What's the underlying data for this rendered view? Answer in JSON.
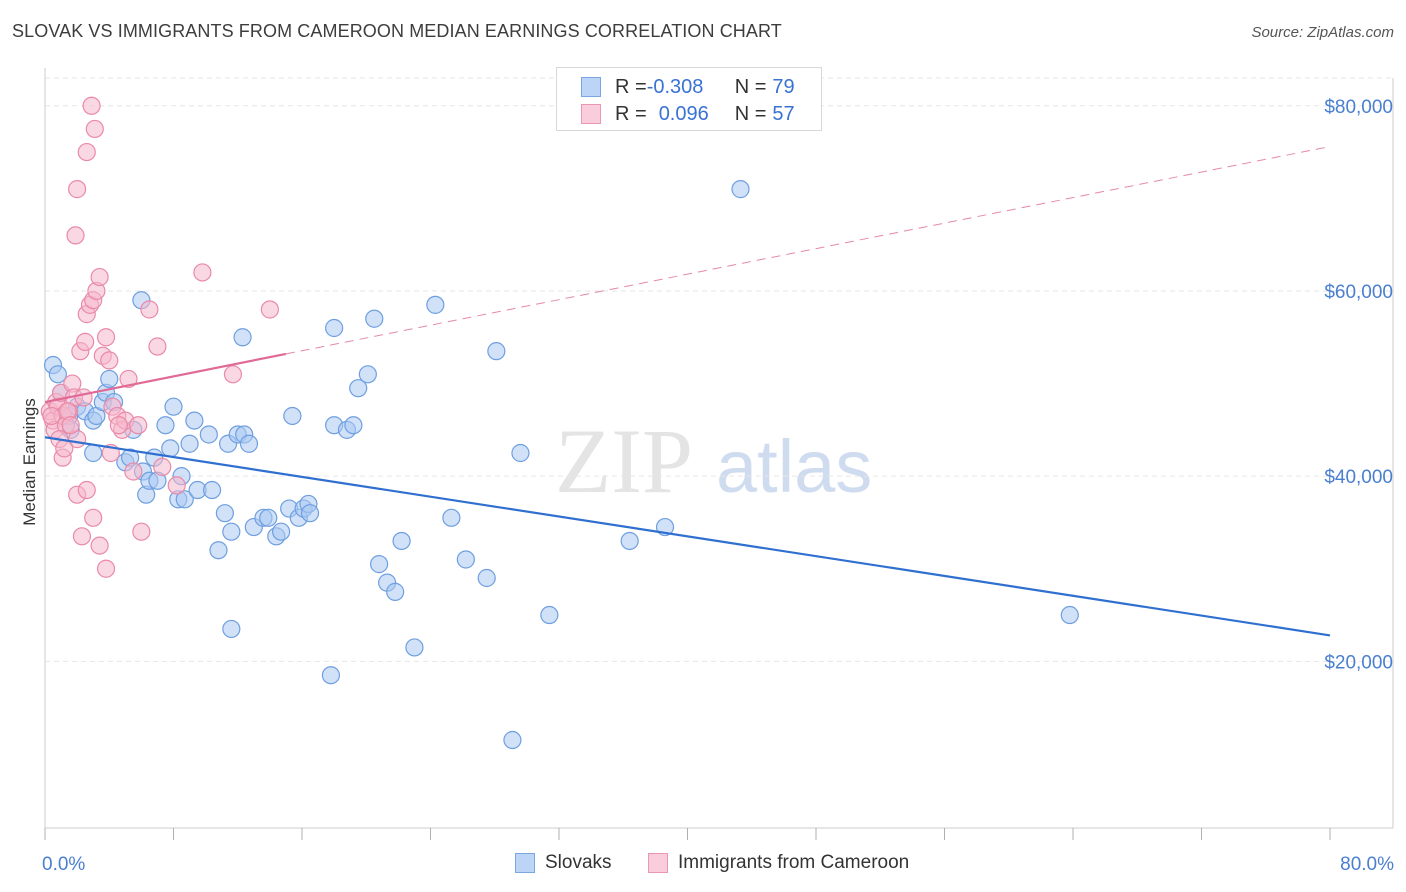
{
  "title": "SLOVAK VS IMMIGRANTS FROM CAMEROON MEDIAN EARNINGS CORRELATION CHART",
  "source": "Source: ZipAtlas.com",
  "watermark": {
    "zip": "ZIP",
    "atlas": "atlas"
  },
  "colors": {
    "blue_fill": "#a9c8f2",
    "blue_stroke": "#6f9fe0",
    "blue_line": "#2f6fd0",
    "pink_fill": "#f6b8cc",
    "pink_stroke": "#e98aa9",
    "pink_line": "#e06a95",
    "grid": "#e6e6e6",
    "tick_text": "#4a7fd0"
  },
  "legend": {
    "rows": [
      {
        "r_label": "R = ",
        "r_value": "-0.308",
        "n_label": "N = ",
        "n_value": "79"
      },
      {
        "r_label": "R = ",
        "r_value": "0.096",
        "n_label": "N = ",
        "n_value": "57"
      }
    ]
  },
  "chart_data": {
    "type": "scatter",
    "title": "SLOVAK VS IMMIGRANTS FROM CAMEROON MEDIAN EARNINGS CORRELATION CHART",
    "xlabel": "",
    "ylabel": "Median Earnings",
    "xlim": [
      0,
      80
    ],
    "ylim": [
      2000,
      83000
    ],
    "x_tick_labels": [
      "0.0%",
      "80.0%"
    ],
    "y_ticks": [
      20000,
      40000,
      60000,
      80000
    ],
    "y_tick_labels": [
      "$20,000",
      "$40,000",
      "$60,000",
      "$80,000"
    ],
    "grid": true,
    "legend_position": "top-center",
    "series": [
      {
        "name": "Slovaks",
        "color": "#a9c8f2",
        "points": [
          [
            0.5,
            52000
          ],
          [
            0.8,
            51000
          ],
          [
            1.5,
            46500
          ],
          [
            1.6,
            45000
          ],
          [
            2.0,
            47500
          ],
          [
            2.5,
            47000
          ],
          [
            3.0,
            46000
          ],
          [
            3.2,
            46500
          ],
          [
            3.6,
            48000
          ],
          [
            3.8,
            49000
          ],
          [
            4.0,
            50500
          ],
          [
            4.3,
            48000
          ],
          [
            3.0,
            42500
          ],
          [
            5.0,
            41500
          ],
          [
            5.3,
            42000
          ],
          [
            5.5,
            45000
          ],
          [
            6.1,
            40500
          ],
          [
            6.3,
            38000
          ],
          [
            6.5,
            39500
          ],
          [
            6.8,
            42000
          ],
          [
            7.0,
            39500
          ],
          [
            7.5,
            45500
          ],
          [
            7.8,
            43000
          ],
          [
            8.0,
            47500
          ],
          [
            8.3,
            37500
          ],
          [
            8.5,
            40000
          ],
          [
            8.7,
            37500
          ],
          [
            9.0,
            43500
          ],
          [
            9.3,
            46000
          ],
          [
            9.5,
            38500
          ],
          [
            10.2,
            44500
          ],
          [
            10.4,
            38500
          ],
          [
            10.8,
            32000
          ],
          [
            11.2,
            36000
          ],
          [
            11.4,
            43500
          ],
          [
            11.6,
            34000
          ],
          [
            12.0,
            44500
          ],
          [
            12.4,
            44500
          ],
          [
            12.7,
            43500
          ],
          [
            13.0,
            34500
          ],
          [
            13.6,
            35500
          ],
          [
            13.9,
            35500
          ],
          [
            14.4,
            33500
          ],
          [
            14.7,
            34000
          ],
          [
            15.2,
            36500
          ],
          [
            15.4,
            46500
          ],
          [
            15.8,
            35500
          ],
          [
            16.1,
            36500
          ],
          [
            16.4,
            37000
          ],
          [
            16.5,
            36000
          ],
          [
            18.0,
            45500
          ],
          [
            18.8,
            45000
          ],
          [
            19.2,
            45500
          ],
          [
            19.5,
            49500
          ],
          [
            20.1,
            51000
          ],
          [
            20.5,
            57000
          ],
          [
            20.8,
            30500
          ],
          [
            21.3,
            28500
          ],
          [
            21.8,
            27500
          ],
          [
            22.2,
            33000
          ],
          [
            23.0,
            21500
          ],
          [
            24.3,
            58500
          ],
          [
            25.3,
            35500
          ],
          [
            26.2,
            31000
          ],
          [
            27.5,
            29000
          ],
          [
            28.1,
            53500
          ],
          [
            29.1,
            11500
          ],
          [
            29.6,
            42500
          ],
          [
            31.4,
            25000
          ],
          [
            36.4,
            33000
          ],
          [
            38.6,
            34500
          ],
          [
            43.3,
            71000
          ],
          [
            11.6,
            23500
          ],
          [
            12.3,
            55000
          ],
          [
            17.8,
            18500
          ],
          [
            18.0,
            56000
          ],
          [
            6.0,
            59000
          ],
          [
            63.8,
            25000
          ],
          [
            1.0,
            49000
          ]
        ]
      },
      {
        "name": "Immigrants from Cameroon",
        "color": "#f6b8cc",
        "points": [
          [
            0.3,
            47000
          ],
          [
            0.5,
            46000
          ],
          [
            0.6,
            45000
          ],
          [
            0.7,
            48000
          ],
          [
            0.8,
            47500
          ],
          [
            1.0,
            49000
          ],
          [
            1.1,
            46500
          ],
          [
            1.3,
            45500
          ],
          [
            1.5,
            47000
          ],
          [
            1.7,
            50000
          ],
          [
            1.8,
            48500
          ],
          [
            2.0,
            44000
          ],
          [
            2.2,
            53500
          ],
          [
            2.5,
            54500
          ],
          [
            2.6,
            57500
          ],
          [
            2.8,
            58500
          ],
          [
            3.0,
            59000
          ],
          [
            3.2,
            60000
          ],
          [
            3.4,
            61500
          ],
          [
            3.6,
            53000
          ],
          [
            3.8,
            55000
          ],
          [
            4.0,
            52500
          ],
          [
            4.2,
            47500
          ],
          [
            4.5,
            46500
          ],
          [
            4.8,
            45000
          ],
          [
            5.0,
            46000
          ],
          [
            5.2,
            50500
          ],
          [
            5.5,
            40500
          ],
          [
            6.0,
            34000
          ],
          [
            6.5,
            58000
          ],
          [
            7.0,
            54000
          ],
          [
            7.3,
            41000
          ],
          [
            2.0,
            38000
          ],
          [
            2.3,
            33500
          ],
          [
            2.6,
            38500
          ],
          [
            3.0,
            35500
          ],
          [
            3.4,
            32500
          ],
          [
            3.8,
            30000
          ],
          [
            4.1,
            42500
          ],
          [
            4.6,
            45500
          ],
          [
            1.9,
            66000
          ],
          [
            2.0,
            71000
          ],
          [
            2.6,
            75000
          ],
          [
            2.9,
            80000
          ],
          [
            3.1,
            77500
          ],
          [
            8.2,
            39000
          ],
          [
            9.8,
            62000
          ],
          [
            11.7,
            51000
          ],
          [
            14.0,
            58000
          ],
          [
            1.1,
            42000
          ],
          [
            1.4,
            47000
          ],
          [
            0.9,
            44000
          ],
          [
            2.4,
            48500
          ],
          [
            1.6,
            45500
          ],
          [
            0.4,
            46500
          ],
          [
            1.2,
            43000
          ],
          [
            5.8,
            45500
          ]
        ]
      }
    ],
    "trend_lines": [
      {
        "series": "Slovaks",
        "from": [
          0,
          44200
        ],
        "to": [
          80,
          22800
        ],
        "style": "solid"
      },
      {
        "series": "Immigrants from Cameroon",
        "from": [
          0,
          48000
        ],
        "to": [
          15,
          53200
        ],
        "style": "solid"
      },
      {
        "series": "Immigrants from Cameroon",
        "from": [
          15,
          53200
        ],
        "to": [
          80,
          75600
        ],
        "style": "dashed"
      }
    ]
  },
  "bottom_legend": [
    {
      "label": "Slovaks"
    },
    {
      "label": "Immigrants from Cameroon"
    }
  ]
}
